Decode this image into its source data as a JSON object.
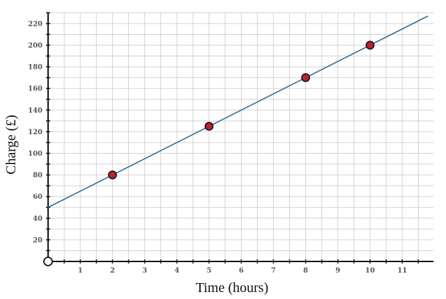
{
  "chart_data": {
    "type": "line",
    "xlabel": "Time (hours)",
    "ylabel": "Charge (£)",
    "xlim": [
      0,
      11.8
    ],
    "ylim": [
      0,
      230
    ],
    "x_ticks": [
      1,
      2,
      3,
      4,
      5,
      6,
      7,
      8,
      9,
      10,
      11
    ],
    "y_ticks": [
      20,
      40,
      60,
      80,
      100,
      120,
      140,
      160,
      180,
      200,
      220
    ],
    "minor_grid_step_x": 0.5,
    "minor_grid_step_y": 10,
    "grid": true,
    "line": {
      "intercept": 50,
      "slope": 15,
      "x_start": 0,
      "x_end": 11.8
    },
    "points": [
      {
        "x": 2,
        "y": 80
      },
      {
        "x": 5,
        "y": 125
      },
      {
        "x": 8,
        "y": 170
      },
      {
        "x": 10,
        "y": 200
      }
    ],
    "origin_marker": true,
    "colors": {
      "line": "#2e6b99",
      "point_fill": "#c0202a",
      "point_stroke": "#1a1a1a",
      "grid": "#d2d2d2",
      "axis": "#111111"
    }
  }
}
